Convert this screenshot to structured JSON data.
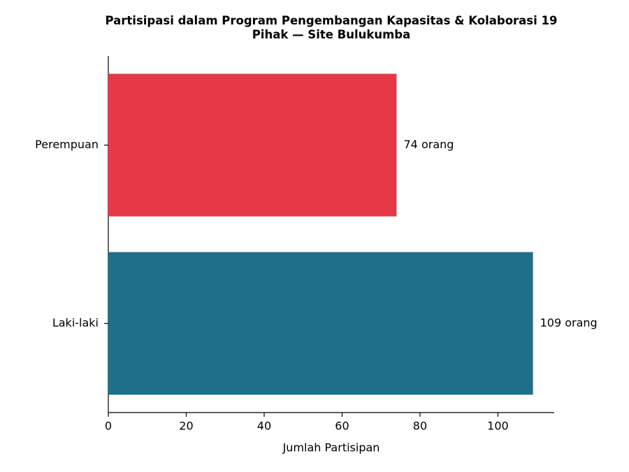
{
  "chart_data": {
    "type": "barh",
    "title": "Partisipasi dalam Program Pengembangan Kapasitas & Kolaborasi 19 Pihak — Site Bulukumba",
    "xlabel": "Jumlah Partisipan",
    "categories": [
      "Laki-laki",
      "Perempuan"
    ],
    "values": [
      109,
      74
    ],
    "value_labels": [
      "109 orang",
      "74 orang"
    ],
    "colors": [
      "#1f6f8b",
      "#e63946"
    ],
    "xlim": [
      0,
      114.45
    ],
    "xticks": [
      0,
      20,
      40,
      60,
      80,
      100
    ],
    "grid": false
  }
}
